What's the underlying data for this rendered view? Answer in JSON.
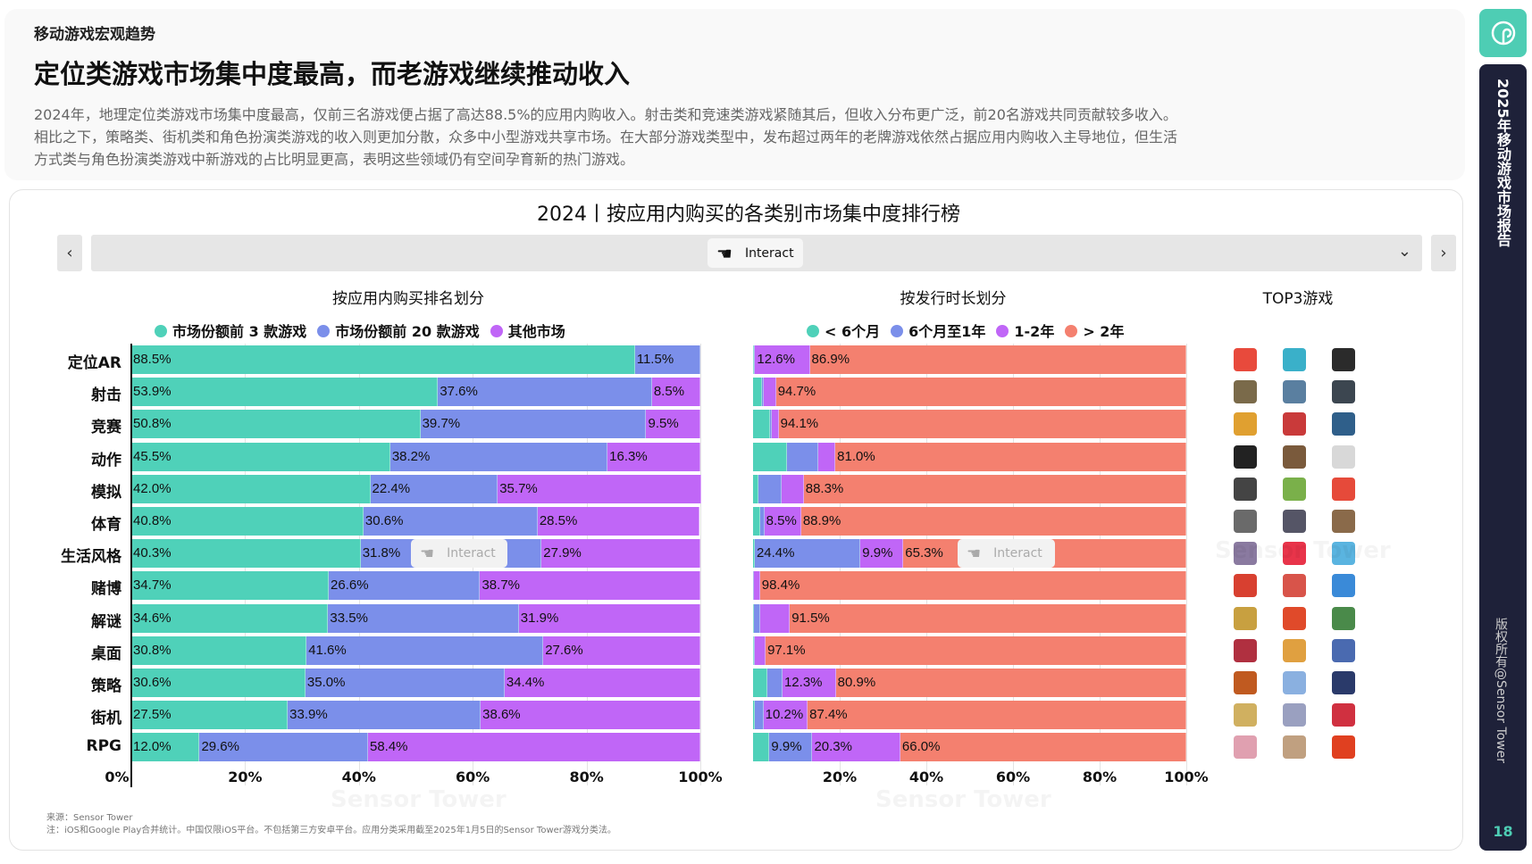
{
  "header": {
    "kicker": "移动游戏宏观趋势",
    "title": "定位类游戏市场集中度最高，而老游戏继续推动收入",
    "paragraph": [
      "2024年，地理定位类游戏市场集中度最高，仅前三名游戏便占据了高达88.5%的应用内购收入。射击类和竞速类游戏紧随其后，但收入分布更广泛，前20名游戏共同贡献较多收入。",
      "相比之下，策略类、街机类和角色扮演类游戏的收入则更加分散，众多中小型游戏共享市场。在大部分游戏类型中，发布超过两年的老牌游戏依然占据应用内购收入主导地位，但生活",
      "方式类与角色扮演类游戏中新游戏的占比明显更高，表明这些领域仍有空间孕育新的热门游戏。"
    ]
  },
  "toolbar": {
    "prev": "‹",
    "next": "›",
    "chevron": "⌄",
    "interact": "Interact"
  },
  "top3_title": "TOP3游戏",
  "colors": {
    "teal": "#4fd1b9",
    "blue": "#7b8fea",
    "purple": "#c066f7",
    "salmon": "#f4806f"
  },
  "chart_data": [
    {
      "type": "bar",
      "stacked": true,
      "orientation": "horizontal",
      "title": "2024丨按应用内购买的各类别市场集中度排行榜",
      "subtitle": "按应用内购买排名划分",
      "categories": [
        "定位AR",
        "射击",
        "竞赛",
        "动作",
        "模拟",
        "体育",
        "生活风格",
        "赌博",
        "解谜",
        "桌面",
        "策略",
        "街机",
        "RPG"
      ],
      "series": [
        {
          "name": "市场份额前 3 款游戏",
          "color": "#4fd1b9",
          "values": [
            88.5,
            53.9,
            50.8,
            45.5,
            42.0,
            40.8,
            40.3,
            34.7,
            34.6,
            30.8,
            30.6,
            27.5,
            12.0
          ]
        },
        {
          "name": "市场份额前 20 款游戏",
          "color": "#7b8fea",
          "values": [
            11.5,
            37.6,
            39.7,
            38.2,
            22.4,
            30.6,
            31.8,
            26.6,
            33.5,
            41.6,
            35.0,
            33.9,
            29.6
          ]
        },
        {
          "name": "其他市场",
          "color": "#c066f7",
          "values": [
            0,
            8.5,
            9.5,
            16.3,
            35.7,
            28.5,
            27.9,
            38.7,
            31.9,
            27.6,
            34.4,
            38.6,
            58.4
          ]
        }
      ],
      "xticks": [
        "0%",
        "20%",
        "40%",
        "60%",
        "80%",
        "100%"
      ],
      "xlim": [
        0,
        100
      ],
      "legend": "top"
    },
    {
      "type": "bar",
      "stacked": true,
      "orientation": "horizontal",
      "subtitle": "按发行时长划分",
      "categories": [
        "定位AR",
        "射击",
        "竞赛",
        "动作",
        "模拟",
        "体育",
        "生活风格",
        "赌博",
        "解谜",
        "桌面",
        "策略",
        "街机",
        "RPG"
      ],
      "series": [
        {
          "name": "< 6个月",
          "color": "#4fd1b9",
          "values": [
            0.2,
            2.1,
            3.9,
            7.9,
            1.3,
            1.6,
            0.4,
            0.1,
            0.3,
            0.3,
            3.4,
            0.5,
            3.8
          ]
        },
        {
          "name": "6个月至1年",
          "color": "#7b8fea",
          "values": [
            0.3,
            0.3,
            0.4,
            7.1,
            5.2,
            1.0,
            24.4,
            0.1,
            1.3,
            0.2,
            3.4,
            1.9,
            9.9
          ]
        },
        {
          "name": "1-2年",
          "color": "#c066f7",
          "values": [
            12.6,
            2.9,
            1.6,
            4.0,
            5.2,
            8.5,
            9.9,
            1.4,
            6.9,
            2.4,
            12.3,
            10.2,
            20.3
          ]
        },
        {
          "name": "> 2年",
          "color": "#f4806f",
          "values": [
            86.9,
            94.7,
            94.1,
            81.0,
            88.3,
            88.9,
            65.3,
            98.4,
            91.5,
            97.1,
            80.9,
            87.4,
            66.0
          ]
        }
      ],
      "xticks": [
        "20%",
        "40%",
        "60%",
        "80%",
        "100%"
      ],
      "xlim": [
        0,
        100
      ],
      "legend": "top"
    }
  ],
  "top3_icons": [
    [
      "#e84a3c",
      "#3ab0c9",
      "#2b2b2b"
    ],
    [
      "#7a6a4a",
      "#5a7fa0",
      "#3c4650"
    ],
    [
      "#e0a030",
      "#c93a3a",
      "#2f5f8a"
    ],
    [
      "#222",
      "#7a5a3c",
      "#d8d8d8"
    ],
    [
      "#444",
      "#7ab04a",
      "#e64a3a"
    ],
    [
      "#6a6a6a",
      "#556",
      "#8a6a4a"
    ],
    [
      "#8a7aa0",
      "#e8344a",
      "#5ab4e0"
    ],
    [
      "#d84030",
      "#d8544a",
      "#3a8ad8"
    ],
    [
      "#c8a040",
      "#e04a2a",
      "#4a8a4a"
    ],
    [
      "#b03040",
      "#e0a040",
      "#4a6ab0"
    ],
    [
      "#c05a20",
      "#8ab0e0",
      "#2a3a6a"
    ],
    [
      "#d0b060",
      "#9aa0c0",
      "#d03040"
    ],
    [
      "#e0a0b0",
      "#c0a080",
      "#e04020"
    ]
  ],
  "footer": {
    "source": "来源：Sensor Tower",
    "note": "注：iOS和Google Play合并统计。中国仅限iOS平台。不包括第三方安卓平台。应用分类采用截至2025年1月5日的Sensor Tower游戏分类法。"
  },
  "watermark": "Sensor Tower",
  "sidebar": {
    "report": "2025年移动游戏市场报告",
    "copyright": "版权所有@Sensor Tower",
    "page": "18"
  }
}
